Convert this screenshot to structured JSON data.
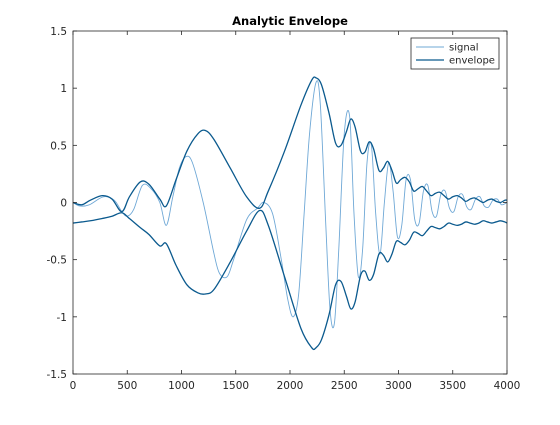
{
  "chart_data": {
    "type": "line",
    "title": "Analytic Envelope",
    "xlabel": "",
    "ylabel": "",
    "xlim": [
      0,
      4000
    ],
    "ylim": [
      -1.5,
      1.5
    ],
    "x_ticks": [
      0,
      500,
      1000,
      1500,
      2000,
      2500,
      3000,
      3500,
      4000
    ],
    "x_tick_labels": [
      "0",
      "500",
      "1000",
      "1500",
      "2000",
      "2500",
      "3000",
      "3500",
      "4000"
    ],
    "y_ticks": [
      -1.5,
      -1,
      -0.5,
      0,
      0.5,
      1,
      1.5
    ],
    "y_tick_labels": [
      "-1.5",
      "-1",
      "-0.5",
      "0",
      "0.5",
      "1",
      "1.5"
    ],
    "grid": false,
    "legend_position": "top-right",
    "series": [
      {
        "name": "signal",
        "color": "#6fa8d6",
        "points": [
          [
            0,
            0.0
          ],
          [
            60,
            -0.03
          ],
          [
            150,
            -0.02
          ],
          [
            280,
            0.05
          ],
          [
            380,
            0.02
          ],
          [
            450,
            -0.08
          ],
          [
            500,
            -0.12
          ],
          [
            560,
            -0.06
          ],
          [
            640,
            0.15
          ],
          [
            720,
            0.12
          ],
          [
            800,
            0.0
          ],
          [
            860,
            -0.2
          ],
          [
            920,
            0.05
          ],
          [
            980,
            0.3
          ],
          [
            1040,
            0.4
          ],
          [
            1100,
            0.35
          ],
          [
            1200,
            0.0
          ],
          [
            1300,
            -0.45
          ],
          [
            1350,
            -0.62
          ],
          [
            1420,
            -0.65
          ],
          [
            1480,
            -0.5
          ],
          [
            1600,
            -0.15
          ],
          [
            1700,
            -0.05
          ],
          [
            1760,
            0.0
          ],
          [
            1840,
            -0.1
          ],
          [
            1920,
            -0.5
          ],
          [
            1980,
            -0.85
          ],
          [
            2030,
            -1.0
          ],
          [
            2080,
            -0.8
          ],
          [
            2130,
            -0.1
          ],
          [
            2180,
            0.6
          ],
          [
            2240,
            1.05
          ],
          [
            2280,
            0.85
          ],
          [
            2330,
            -0.2
          ],
          [
            2370,
            -0.95
          ],
          [
            2410,
            -1.05
          ],
          [
            2450,
            -0.4
          ],
          [
            2500,
            0.6
          ],
          [
            2550,
            0.75
          ],
          [
            2590,
            -0.1
          ],
          [
            2630,
            -0.65
          ],
          [
            2670,
            -0.4
          ],
          [
            2710,
            0.35
          ],
          [
            2750,
            0.5
          ],
          [
            2790,
            -0.1
          ],
          [
            2830,
            -0.45
          ],
          [
            2870,
            0.0
          ],
          [
            2910,
            0.35
          ],
          [
            2950,
            0.1
          ],
          [
            2990,
            -0.3
          ],
          [
            3030,
            -0.2
          ],
          [
            3070,
            0.2
          ],
          [
            3110,
            0.2
          ],
          [
            3150,
            -0.15
          ],
          [
            3190,
            -0.18
          ],
          [
            3230,
            0.1
          ],
          [
            3270,
            0.15
          ],
          [
            3310,
            -0.08
          ],
          [
            3350,
            -0.12
          ],
          [
            3390,
            0.07
          ],
          [
            3430,
            0.1
          ],
          [
            3470,
            -0.05
          ],
          [
            3510,
            -0.08
          ],
          [
            3550,
            0.05
          ],
          [
            3590,
            0.07
          ],
          [
            3630,
            -0.04
          ],
          [
            3670,
            -0.06
          ],
          [
            3710,
            0.03
          ],
          [
            3750,
            0.05
          ],
          [
            3790,
            -0.03
          ],
          [
            3830,
            -0.04
          ],
          [
            3870,
            0.02
          ],
          [
            3910,
            0.03
          ],
          [
            3950,
            -0.02
          ],
          [
            4000,
            0.0
          ]
        ]
      },
      {
        "name": "envelope",
        "color": "#0b5a8e",
        "upper": [
          [
            0,
            0.0
          ],
          [
            80,
            -0.02
          ],
          [
            160,
            0.02
          ],
          [
            270,
            0.06
          ],
          [
            360,
            0.03
          ],
          [
            450,
            -0.08
          ],
          [
            520,
            0.05
          ],
          [
            620,
            0.18
          ],
          [
            700,
            0.16
          ],
          [
            800,
            0.03
          ],
          [
            860,
            -0.03
          ],
          [
            950,
            0.2
          ],
          [
            1050,
            0.45
          ],
          [
            1150,
            0.6
          ],
          [
            1220,
            0.63
          ],
          [
            1300,
            0.55
          ],
          [
            1450,
            0.3
          ],
          [
            1600,
            0.05
          ],
          [
            1720,
            -0.05
          ],
          [
            1800,
            0.1
          ],
          [
            1950,
            0.45
          ],
          [
            2100,
            0.85
          ],
          [
            2200,
            1.07
          ],
          [
            2240,
            1.09
          ],
          [
            2290,
            1.03
          ],
          [
            2360,
            0.78
          ],
          [
            2420,
            0.52
          ],
          [
            2470,
            0.5
          ],
          [
            2520,
            0.62
          ],
          [
            2560,
            0.73
          ],
          [
            2600,
            0.66
          ],
          [
            2650,
            0.45
          ],
          [
            2690,
            0.44
          ],
          [
            2730,
            0.53
          ],
          [
            2770,
            0.47
          ],
          [
            2820,
            0.28
          ],
          [
            2860,
            0.3
          ],
          [
            2900,
            0.36
          ],
          [
            2940,
            0.28
          ],
          [
            2980,
            0.17
          ],
          [
            3020,
            0.2
          ],
          [
            3060,
            0.22
          ],
          [
            3100,
            0.18
          ],
          [
            3140,
            0.1
          ],
          [
            3180,
            0.12
          ],
          [
            3220,
            0.14
          ],
          [
            3260,
            0.1
          ],
          [
            3300,
            0.06
          ],
          [
            3340,
            0.08
          ],
          [
            3380,
            0.09
          ],
          [
            3420,
            0.06
          ],
          [
            3460,
            0.03
          ],
          [
            3500,
            0.05
          ],
          [
            3540,
            0.06
          ],
          [
            3580,
            0.04
          ],
          [
            3620,
            0.01
          ],
          [
            3660,
            0.03
          ],
          [
            3700,
            0.04
          ],
          [
            3740,
            0.02
          ],
          [
            3780,
            0.0
          ],
          [
            3820,
            0.02
          ],
          [
            3860,
            0.03
          ],
          [
            3900,
            0.01
          ],
          [
            3940,
            0.0
          ],
          [
            3980,
            0.02
          ],
          [
            4000,
            0.02
          ]
        ],
        "lower": [
          [
            0,
            -0.18
          ],
          [
            80,
            -0.17
          ],
          [
            160,
            -0.16
          ],
          [
            270,
            -0.14
          ],
          [
            360,
            -0.12
          ],
          [
            450,
            -0.09
          ],
          [
            520,
            -0.14
          ],
          [
            620,
            -0.22
          ],
          [
            700,
            -0.28
          ],
          [
            800,
            -0.38
          ],
          [
            860,
            -0.36
          ],
          [
            950,
            -0.55
          ],
          [
            1050,
            -0.72
          ],
          [
            1150,
            -0.79
          ],
          [
            1220,
            -0.8
          ],
          [
            1300,
            -0.76
          ],
          [
            1450,
            -0.52
          ],
          [
            1600,
            -0.25
          ],
          [
            1720,
            -0.07
          ],
          [
            1800,
            -0.2
          ],
          [
            1950,
            -0.65
          ],
          [
            2100,
            -1.1
          ],
          [
            2200,
            -1.27
          ],
          [
            2240,
            -1.27
          ],
          [
            2290,
            -1.2
          ],
          [
            2360,
            -0.98
          ],
          [
            2420,
            -0.72
          ],
          [
            2470,
            -0.69
          ],
          [
            2520,
            -0.82
          ],
          [
            2560,
            -0.93
          ],
          [
            2600,
            -0.87
          ],
          [
            2650,
            -0.64
          ],
          [
            2690,
            -0.6
          ],
          [
            2730,
            -0.68
          ],
          [
            2770,
            -0.63
          ],
          [
            2820,
            -0.45
          ],
          [
            2860,
            -0.46
          ],
          [
            2900,
            -0.52
          ],
          [
            2940,
            -0.45
          ],
          [
            2980,
            -0.34
          ],
          [
            3020,
            -0.35
          ],
          [
            3060,
            -0.37
          ],
          [
            3100,
            -0.33
          ],
          [
            3140,
            -0.26
          ],
          [
            3180,
            -0.27
          ],
          [
            3220,
            -0.29
          ],
          [
            3260,
            -0.25
          ],
          [
            3300,
            -0.21
          ],
          [
            3340,
            -0.22
          ],
          [
            3380,
            -0.23
          ],
          [
            3420,
            -0.21
          ],
          [
            3460,
            -0.18
          ],
          [
            3500,
            -0.19
          ],
          [
            3540,
            -0.2
          ],
          [
            3580,
            -0.19
          ],
          [
            3620,
            -0.17
          ],
          [
            3660,
            -0.18
          ],
          [
            3700,
            -0.19
          ],
          [
            3740,
            -0.18
          ],
          [
            3780,
            -0.16
          ],
          [
            3820,
            -0.17
          ],
          [
            3860,
            -0.18
          ],
          [
            3900,
            -0.17
          ],
          [
            3940,
            -0.16
          ],
          [
            3980,
            -0.17
          ],
          [
            4000,
            -0.18
          ]
        ]
      }
    ]
  }
}
